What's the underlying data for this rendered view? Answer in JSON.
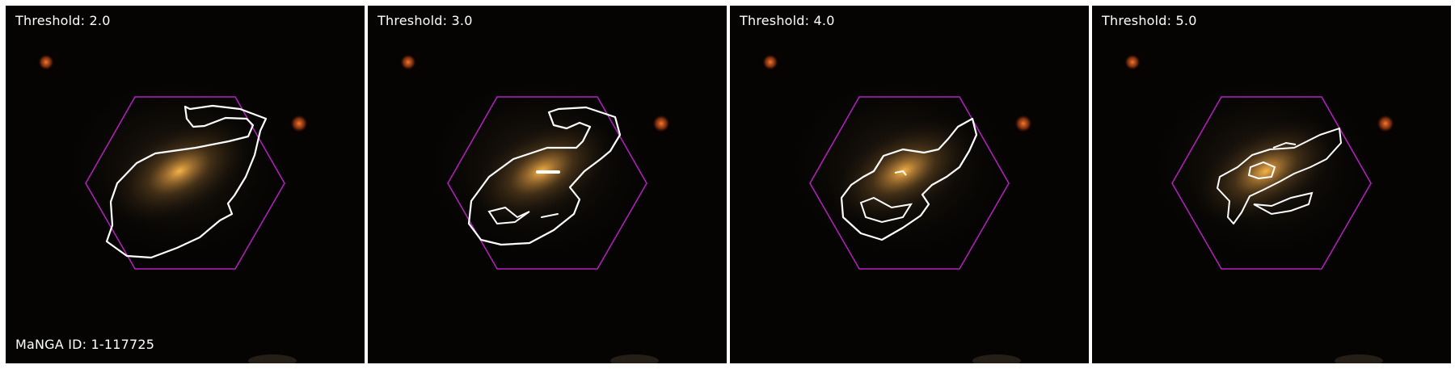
{
  "panels": [
    {
      "threshold_label": "Threshold: 2.0",
      "caption": "MaNGA ID: 1-117725"
    },
    {
      "threshold_label": "Threshold: 3.0",
      "caption": ""
    },
    {
      "threshold_label": "Threshold: 4.0",
      "caption": ""
    },
    {
      "threshold_label": "Threshold: 5.0",
      "caption": ""
    }
  ],
  "colors": {
    "background": "#050403",
    "hexagon": "#b61fbf",
    "contour": "#ffffff",
    "text": "#ffffff"
  }
}
